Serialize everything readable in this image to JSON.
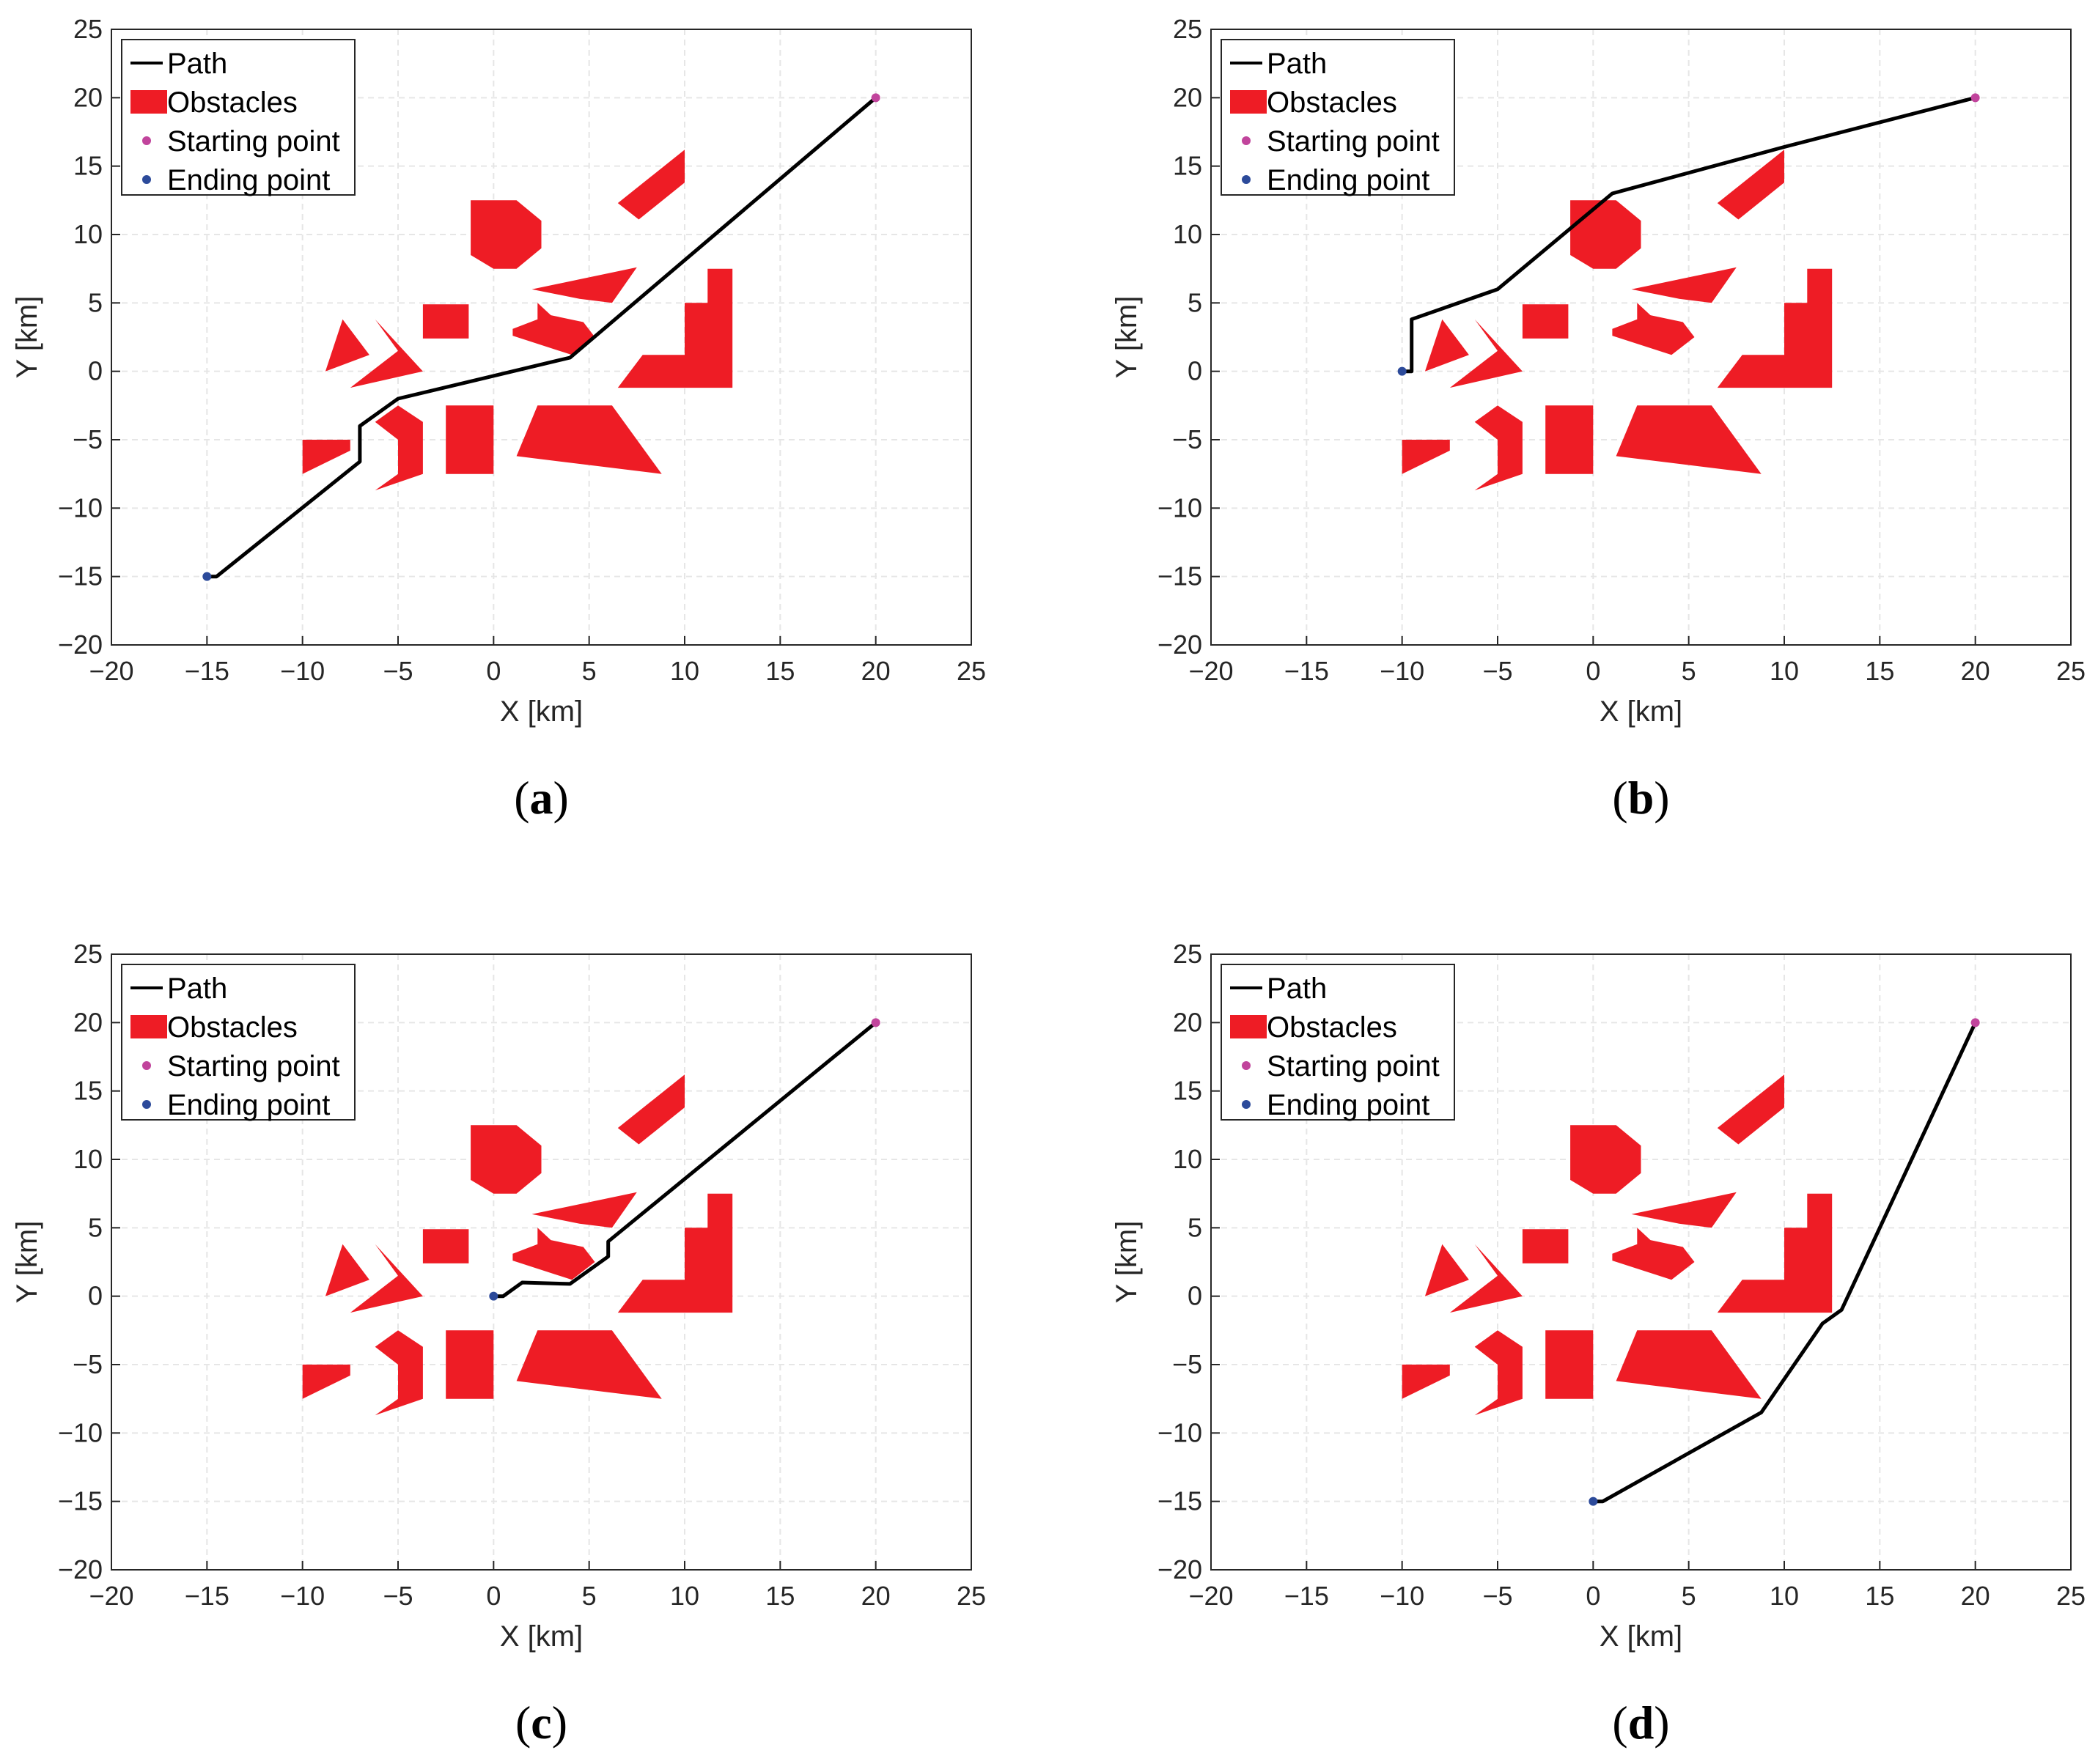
{
  "colors": {
    "obstacle": "#ee1c25",
    "path": "#000000",
    "start": "#c1449c",
    "end": "#2c4a9a",
    "grid": "#e6e6e6",
    "axis": "#262626"
  },
  "chart_data": [
    {
      "type": "line",
      "caption": "(a)",
      "xlabel": "X [km]",
      "ylabel": "Y [km]",
      "xlim": [
        -20,
        25
      ],
      "ylim": [
        -20,
        25
      ],
      "xticks": [
        -20,
        -15,
        -10,
        -5,
        0,
        5,
        10,
        15,
        20,
        25
      ],
      "yticks": [
        -20,
        -15,
        -10,
        -5,
        0,
        5,
        10,
        15,
        20,
        25
      ],
      "xtick_labels": [
        "−20",
        "−15",
        "−10",
        "−5",
        "0",
        "5",
        "10",
        "15",
        "20",
        "25"
      ],
      "ytick_labels": [
        "−20",
        "−15",
        "−10",
        "−5",
        "0",
        "5",
        "10",
        "15",
        "20",
        "25"
      ],
      "grid": true,
      "legend": {
        "position": "top-left",
        "entries": [
          "Path",
          "Obstacles",
          "Starting point",
          "Ending point"
        ]
      },
      "start": [
        20,
        20
      ],
      "end": [
        -15,
        -15
      ],
      "path": [
        [
          -15,
          -15
        ],
        [
          -14.5,
          -15
        ],
        [
          -7,
          -6.6
        ],
        [
          -7,
          -4
        ],
        [
          -5,
          -2
        ],
        [
          4,
          1
        ],
        [
          20,
          20
        ]
      ]
    },
    {
      "type": "line",
      "caption": "(b)",
      "xlabel": "X [km]",
      "ylabel": "Y [km]",
      "xlim": [
        -20,
        25
      ],
      "ylim": [
        -20,
        25
      ],
      "xticks": [
        -20,
        -15,
        -10,
        -5,
        0,
        5,
        10,
        15,
        20,
        25
      ],
      "yticks": [
        -20,
        -15,
        -10,
        -5,
        0,
        5,
        10,
        15,
        20,
        25
      ],
      "xtick_labels": [
        "−20",
        "−15",
        "−10",
        "−5",
        "0",
        "5",
        "10",
        "15",
        "20",
        "25"
      ],
      "ytick_labels": [
        "−20",
        "−15",
        "−10",
        "−5",
        "0",
        "5",
        "10",
        "15",
        "20",
        "25"
      ],
      "grid": true,
      "legend": {
        "position": "top-left",
        "entries": [
          "Path",
          "Obstacles",
          "Starting point",
          "Ending point"
        ]
      },
      "start": [
        20,
        20
      ],
      "end": [
        -10,
        0
      ],
      "path": [
        [
          -10,
          0
        ],
        [
          -9.5,
          0
        ],
        [
          -9.5,
          3.8
        ],
        [
          -5,
          6
        ],
        [
          1,
          13
        ],
        [
          10,
          16.4
        ],
        [
          20,
          20
        ]
      ]
    },
    {
      "type": "line",
      "caption": "(c)",
      "xlabel": "X [km]",
      "ylabel": "Y [km]",
      "xlim": [
        -20,
        25
      ],
      "ylim": [
        -20,
        25
      ],
      "xticks": [
        -20,
        -15,
        -10,
        -5,
        0,
        5,
        10,
        15,
        20,
        25
      ],
      "yticks": [
        -20,
        -15,
        -10,
        -5,
        0,
        5,
        10,
        15,
        20,
        25
      ],
      "xtick_labels": [
        "−20",
        "−15",
        "−10",
        "−5",
        "0",
        "5",
        "10",
        "15",
        "20",
        "25"
      ],
      "ytick_labels": [
        "−20",
        "−15",
        "−10",
        "−5",
        "0",
        "5",
        "10",
        "15",
        "20",
        "25"
      ],
      "grid": true,
      "legend": {
        "position": "top-left",
        "entries": [
          "Path",
          "Obstacles",
          "Starting point",
          "Ending point"
        ]
      },
      "start": [
        20,
        20
      ],
      "end": [
        0,
        0
      ],
      "path": [
        [
          0,
          0
        ],
        [
          0.5,
          0
        ],
        [
          1.5,
          1
        ],
        [
          4,
          0.9
        ],
        [
          6,
          2.9
        ],
        [
          6,
          4
        ],
        [
          20,
          20
        ]
      ]
    },
    {
      "type": "line",
      "caption": "(d)",
      "xlabel": "X [km]",
      "ylabel": "Y [km]",
      "xlim": [
        -20,
        25
      ],
      "ylim": [
        -20,
        25
      ],
      "xticks": [
        -20,
        -15,
        -10,
        -5,
        0,
        5,
        10,
        15,
        20,
        25
      ],
      "yticks": [
        -20,
        -15,
        -10,
        -5,
        0,
        5,
        10,
        15,
        20,
        25
      ],
      "xtick_labels": [
        "−20",
        "−15",
        "−10",
        "−5",
        "0",
        "5",
        "10",
        "15",
        "20",
        "25"
      ],
      "ytick_labels": [
        "−20",
        "−15",
        "−10",
        "−5",
        "0",
        "5",
        "10",
        "15",
        "20",
        "25"
      ],
      "grid": true,
      "legend": {
        "position": "top-left",
        "entries": [
          "Path",
          "Obstacles",
          "Starting point",
          "Ending point"
        ]
      },
      "start": [
        20,
        20
      ],
      "end": [
        0,
        -15
      ],
      "path": [
        [
          0,
          -15
        ],
        [
          0.5,
          -15
        ],
        [
          8.8,
          -8.5
        ],
        [
          12,
          -2
        ],
        [
          13,
          -1
        ],
        [
          20,
          20
        ]
      ]
    }
  ],
  "obstacles": [
    [
      [
        -1.2,
        12.5
      ],
      [
        1.2,
        12.5
      ],
      [
        2.5,
        11
      ],
      [
        2.5,
        9
      ],
      [
        1.2,
        7.5
      ],
      [
        0,
        7.5
      ],
      [
        -1.2,
        8.5
      ],
      [
        -1.2,
        10
      ]
    ],
    [
      [
        6.5,
        12.3
      ],
      [
        10,
        16.2
      ],
      [
        10,
        13.8
      ],
      [
        7.6,
        11.1
      ]
    ],
    [
      [
        2,
        6
      ],
      [
        7.5,
        7.6
      ],
      [
        6.2,
        5
      ],
      [
        4.5,
        5.3
      ]
    ],
    [
      [
        -3.7,
        4.9
      ],
      [
        -1.3,
        4.9
      ],
      [
        -1.3,
        2.4
      ],
      [
        -3.7,
        2.4
      ]
    ],
    [
      [
        2.3,
        5
      ],
      [
        2.3,
        3.8
      ],
      [
        1,
        3.1
      ],
      [
        1,
        2.6
      ],
      [
        4.1,
        1.2
      ],
      [
        5.3,
        2.5
      ],
      [
        4.7,
        3.6
      ],
      [
        3,
        4.1
      ]
    ],
    [
      [
        -7.9,
        3.8
      ],
      [
        -8.8,
        0
      ],
      [
        -6.5,
        1.2
      ]
    ],
    [
      [
        -6.2,
        3.8
      ],
      [
        -5,
        1.5
      ],
      [
        -7.5,
        -1.2
      ],
      [
        -3.7,
        0
      ]
    ],
    [
      [
        10,
        5
      ],
      [
        11.2,
        5
      ],
      [
        11.2,
        7.5
      ],
      [
        12.5,
        7.5
      ],
      [
        12.5,
        -1.2
      ],
      [
        6.5,
        -1.2
      ],
      [
        7.8,
        1.2
      ],
      [
        10,
        1.2
      ]
    ],
    [
      [
        -10,
        -5
      ],
      [
        -7.5,
        -5
      ],
      [
        -7.5,
        -5.8
      ],
      [
        -10,
        -7.5
      ]
    ],
    [
      [
        -6.2,
        -3.7
      ],
      [
        -5,
        -2.5
      ],
      [
        -3.7,
        -3.7
      ],
      [
        -3.7,
        -7.5
      ],
      [
        -6.2,
        -8.7
      ],
      [
        -5,
        -7.5
      ],
      [
        -5,
        -5
      ]
    ],
    [
      [
        -2.5,
        -2.5
      ],
      [
        0,
        -2.5
      ],
      [
        0,
        -7.5
      ],
      [
        -2.5,
        -7.5
      ]
    ],
    [
      [
        2.3,
        -2.5
      ],
      [
        6.2,
        -2.5
      ],
      [
        8.8,
        -7.5
      ],
      [
        1.2,
        -6.2
      ]
    ]
  ]
}
